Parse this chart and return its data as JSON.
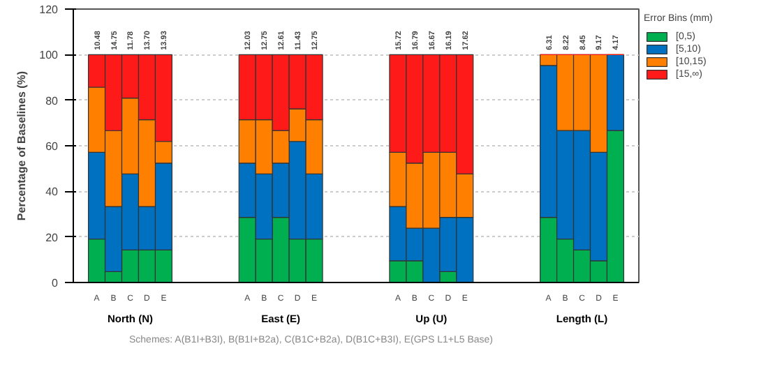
{
  "chart_data": {
    "type": "bar",
    "stacked": true,
    "ylabel": "Percentage of Baselines (%)",
    "legend_title": "Error Bins (mm)",
    "legend": "right",
    "grid": "y",
    "ylim": [
      0,
      120
    ],
    "yticks": [
      0,
      20,
      40,
      60,
      80,
      100,
      120
    ],
    "categories": [
      "A",
      "B",
      "C",
      "D",
      "E",
      null,
      null,
      null,
      null,
      "A",
      "B",
      "C",
      "D",
      "E",
      null,
      null,
      null,
      null,
      "A",
      "B",
      "C",
      "D",
      "E",
      null,
      null,
      null,
      null,
      "A",
      "B",
      "C",
      "D",
      "E"
    ],
    "series": [
      {
        "name": "[0,5)",
        "color": "#00b050",
        "values": [
          19.05,
          4.76,
          14.29,
          14.29,
          14.29,
          null,
          null,
          null,
          null,
          28.57,
          19.05,
          28.57,
          19.05,
          19.05,
          null,
          null,
          null,
          null,
          9.52,
          9.52,
          0,
          4.76,
          0,
          null,
          null,
          null,
          null,
          28.57,
          19.05,
          14.29,
          9.52,
          66.67
        ]
      },
      {
        "name": "[5,10)",
        "color": "#0070c0",
        "values": [
          38.1,
          28.57,
          33.33,
          19.05,
          38.1,
          null,
          null,
          null,
          null,
          23.81,
          28.57,
          23.81,
          42.86,
          28.57,
          null,
          null,
          null,
          null,
          23.81,
          14.29,
          23.81,
          23.81,
          28.57,
          null,
          null,
          null,
          null,
          66.67,
          47.62,
          52.38,
          47.62,
          33.33
        ]
      },
      {
        "name": "[10,15)",
        "color": "#ff8000",
        "values": [
          28.57,
          33.33,
          33.33,
          38.1,
          9.52,
          null,
          null,
          null,
          null,
          19.05,
          23.81,
          14.29,
          14.29,
          23.81,
          null,
          null,
          null,
          null,
          23.81,
          28.57,
          33.33,
          28.57,
          19.05,
          null,
          null,
          null,
          null,
          4.76,
          33.33,
          33.33,
          42.86,
          0
        ]
      },
      {
        "name": "[15,∞)",
        "color": "#ff1a1a",
        "values": [
          14.29,
          33.33,
          19.05,
          28.57,
          38.1,
          null,
          null,
          null,
          null,
          28.57,
          28.57,
          33.33,
          23.81,
          28.57,
          null,
          null,
          null,
          null,
          42.86,
          47.62,
          42.86,
          42.86,
          52.38,
          null,
          null,
          null,
          null,
          0,
          0,
          0,
          0,
          0
        ]
      }
    ],
    "annotations": [
      "10.48",
      "14.75",
      "11.78",
      "13.70",
      "13.93",
      "12.03",
      "12.75",
      "12.61",
      "11.43",
      "12.75",
      "15.72",
      "16.79",
      "16.67",
      "16.19",
      "17.62",
      "6.31",
      "8.22",
      "8.45",
      "9.17",
      "4.17",
      "North (N)",
      "East (E)",
      "Up (U)",
      "Length (L)",
      "Schemes: A(B1I+B3I), B(B1I+B2a), C(B1C+B2a), D(B1C+B3I), E(GPS L1+L5 Base)"
    ]
  }
}
